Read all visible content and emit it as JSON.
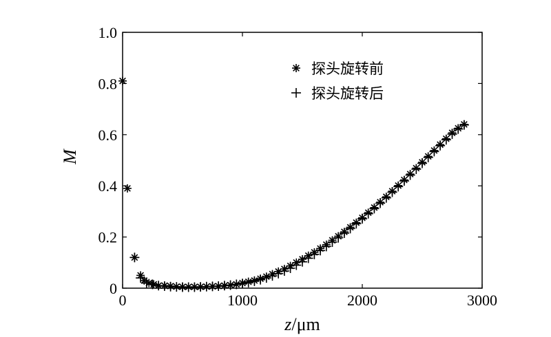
{
  "chart_data": {
    "type": "scatter",
    "title": "",
    "xlabel": {
      "var": "z",
      "unit": "/μm"
    },
    "ylabel": "M",
    "xlim": [
      0,
      3000
    ],
    "ylim": [
      0,
      1.0
    ],
    "xticks": [
      "0",
      "1000",
      "2000",
      "3000"
    ],
    "yticks": [
      "0",
      "0.2",
      "0.4",
      "0.6",
      "0.8",
      "1.0"
    ],
    "grid": false,
    "legend_position": "top-right",
    "series": [
      {
        "name": "探头旋转前",
        "marker": "asterisk",
        "x": [
          0,
          40,
          100,
          150,
          180,
          220,
          260,
          300,
          350,
          400,
          450,
          500,
          550,
          600,
          650,
          700,
          750,
          800,
          850,
          900,
          950,
          1000,
          1050,
          1100,
          1150,
          1200,
          1250,
          1300,
          1350,
          1400,
          1450,
          1500,
          1550,
          1600,
          1650,
          1700,
          1750,
          1800,
          1850,
          1900,
          1950,
          2000,
          2050,
          2100,
          2150,
          2200,
          2250,
          2300,
          2350,
          2400,
          2450,
          2500,
          2550,
          2600,
          2650,
          2700,
          2750,
          2800,
          2850
        ],
        "y": [
          0.81,
          0.39,
          0.12,
          0.05,
          0.03,
          0.02,
          0.015,
          0.01,
          0.01,
          0.008,
          0.006,
          0.005,
          0.005,
          0.005,
          0.005,
          0.006,
          0.007,
          0.008,
          0.01,
          0.012,
          0.015,
          0.02,
          0.025,
          0.03,
          0.037,
          0.045,
          0.055,
          0.065,
          0.075,
          0.087,
          0.1,
          0.113,
          0.127,
          0.14,
          0.155,
          0.17,
          0.187,
          0.203,
          0.22,
          0.238,
          0.256,
          0.275,
          0.295,
          0.315,
          0.336,
          0.357,
          0.379,
          0.401,
          0.423,
          0.446,
          0.469,
          0.492,
          0.515,
          0.538,
          0.561,
          0.584,
          0.607,
          0.625,
          0.64
        ]
      },
      {
        "name": "探头旋转后",
        "marker": "plus",
        "x": [
          100,
          150,
          200,
          250,
          300,
          350,
          400,
          450,
          500,
          550,
          600,
          650,
          700,
          750,
          800,
          850,
          900,
          950,
          1000,
          1050,
          1100,
          1150,
          1200,
          1250,
          1300,
          1350,
          1400,
          1450,
          1500,
          1550,
          1600,
          1650,
          1700,
          1750,
          1800,
          1850,
          1900,
          1950,
          2000,
          2050,
          2100,
          2150,
          2200,
          2250,
          2300,
          2350,
          2400,
          2450,
          2500,
          2550,
          2600,
          2650,
          2700,
          2750,
          2800,
          2850
        ],
        "y": [
          0.12,
          0.04,
          0.02,
          0.015,
          0.01,
          0.008,
          0.006,
          0.005,
          0.004,
          0.004,
          0.004,
          0.005,
          0.006,
          0.007,
          0.008,
          0.01,
          0.012,
          0.015,
          0.018,
          0.022,
          0.027,
          0.033,
          0.04,
          0.048,
          0.057,
          0.067,
          0.078,
          0.09,
          0.103,
          0.117,
          0.132,
          0.147,
          0.163,
          0.18,
          0.197,
          0.215,
          0.233,
          0.252,
          0.271,
          0.291,
          0.311,
          0.332,
          0.353,
          0.375,
          0.397,
          0.419,
          0.442,
          0.465,
          0.488,
          0.511,
          0.534,
          0.557,
          0.58,
          0.602,
          0.622,
          0.638
        ]
      }
    ]
  }
}
